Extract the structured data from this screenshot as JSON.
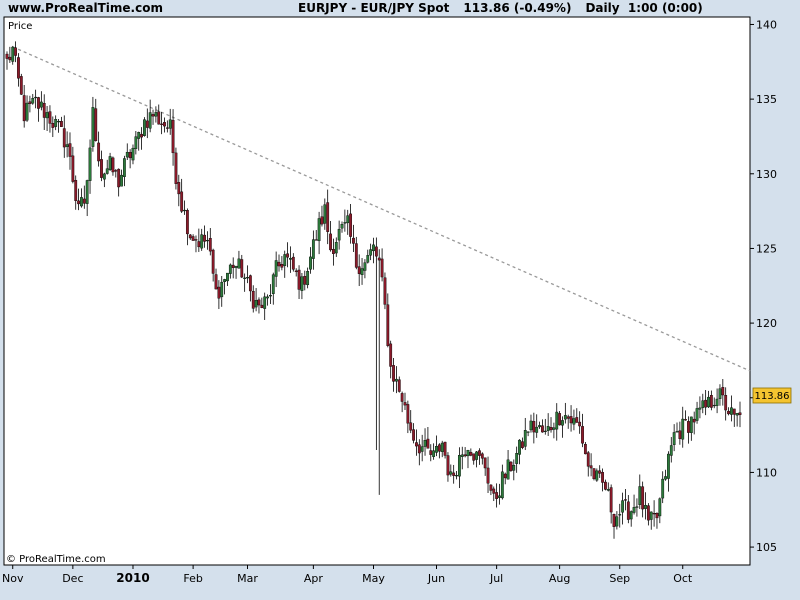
{
  "header": {
    "site": "www.ProRealTime.com",
    "symbol": "EURJPY - EUR/JPY Spot",
    "change": "113.86 (-0.49%)",
    "period": "Daily  1:00 (0:00)"
  },
  "panel_label": "Price",
  "copyright": "© ProRealTime.com",
  "last_price": "113.86",
  "colors": {
    "background": "#d4e0ec",
    "plot_bg": "#ffffff",
    "up_candle": "#2c7a3b",
    "down_candle": "#8b1a2a",
    "trendline": "#999999",
    "price_tag": "#f4c430"
  },
  "chart_data": {
    "type": "candlestick",
    "title": "EURJPY - EUR/JPY Spot",
    "y_ticks": [
      105,
      110,
      115,
      120,
      125,
      130,
      135,
      140
    ],
    "ylim": [
      103.8,
      140.5
    ],
    "x_labels": [
      {
        "text": "Nov",
        "idx": 2,
        "bold": false
      },
      {
        "text": "Dec",
        "idx": 23,
        "bold": false
      },
      {
        "text": "2010",
        "idx": 44,
        "bold": true
      },
      {
        "text": "Feb",
        "idx": 65,
        "bold": false
      },
      {
        "text": "Mar",
        "idx": 84,
        "bold": false
      },
      {
        "text": "Apr",
        "idx": 107,
        "bold": false
      },
      {
        "text": "May",
        "idx": 128,
        "bold": false
      },
      {
        "text": "Jun",
        "idx": 150,
        "bold": false
      },
      {
        "text": "Jul",
        "idx": 171,
        "bold": false
      },
      {
        "text": "Aug",
        "idx": 193,
        "bold": false
      },
      {
        "text": "Sep",
        "idx": 214,
        "bold": false
      },
      {
        "text": "Oct",
        "idx": 236,
        "bold": false
      }
    ],
    "anchors": [
      [
        0,
        137.5
      ],
      [
        2,
        138.3
      ],
      [
        6,
        134.0
      ],
      [
        10,
        134.8
      ],
      [
        14,
        134.0
      ],
      [
        18,
        133.0
      ],
      [
        21,
        132.0
      ],
      [
        24,
        128.5
      ],
      [
        27,
        127.5
      ],
      [
        30,
        134.0
      ],
      [
        33,
        130.0
      ],
      [
        36,
        130.5
      ],
      [
        39,
        129.5
      ],
      [
        42,
        131.0
      ],
      [
        45,
        132.0
      ],
      [
        48,
        133.5
      ],
      [
        51,
        134.0
      ],
      [
        54,
        133.5
      ],
      [
        57,
        133.0
      ],
      [
        59,
        130.0
      ],
      [
        61,
        128.0
      ],
      [
        64,
        126.0
      ],
      [
        67,
        125.5
      ],
      [
        70,
        125.5
      ],
      [
        73,
        122.0
      ],
      [
        76,
        123.0
      ],
      [
        79,
        124.0
      ],
      [
        82,
        123.5
      ],
      [
        85,
        122.0
      ],
      [
        88,
        121.0
      ],
      [
        91,
        121.5
      ],
      [
        94,
        123.5
      ],
      [
        97,
        124.5
      ],
      [
        100,
        123.5
      ],
      [
        103,
        122.5
      ],
      [
        106,
        124.5
      ],
      [
        109,
        126.5
      ],
      [
        111,
        127.5
      ],
      [
        113,
        125.0
      ],
      [
        116,
        126.0
      ],
      [
        119,
        126.5
      ],
      [
        122,
        124.0
      ],
      [
        125,
        124.0
      ],
      [
        128,
        125.0
      ],
      [
        130,
        124.0
      ],
      [
        132,
        121.0
      ],
      [
        134,
        117.0
      ],
      [
        136,
        116.0
      ],
      [
        138,
        115.0
      ],
      [
        140,
        113.5
      ],
      [
        143,
        112.0
      ],
      [
        146,
        111.5
      ],
      [
        149,
        111.0
      ],
      [
        152,
        112.0
      ],
      [
        155,
        109.5
      ],
      [
        158,
        111.0
      ],
      [
        161,
        112.0
      ],
      [
        164,
        111.0
      ],
      [
        167,
        110.5
      ],
      [
        170,
        108.0
      ],
      [
        173,
        109.5
      ],
      [
        176,
        110.5
      ],
      [
        179,
        111.5
      ],
      [
        182,
        113.0
      ],
      [
        185,
        113.0
      ],
      [
        188,
        112.5
      ],
      [
        191,
        113.5
      ],
      [
        194,
        114.0
      ],
      [
        197,
        113.5
      ],
      [
        200,
        113.0
      ],
      [
        203,
        110.5
      ],
      [
        206,
        109.5
      ],
      [
        209,
        109.0
      ],
      [
        212,
        107.0
      ],
      [
        215,
        107.5
      ],
      [
        218,
        107.5
      ],
      [
        221,
        108.5
      ],
      [
        224,
        106.5
      ],
      [
        227,
        107.0
      ],
      [
        230,
        110.0
      ],
      [
        233,
        112.5
      ],
      [
        236,
        113.0
      ],
      [
        239,
        113.5
      ],
      [
        242,
        114.0
      ],
      [
        245,
        114.5
      ],
      [
        248,
        115.3
      ],
      [
        251,
        114.5
      ],
      [
        254,
        113.5
      ],
      [
        256,
        113.86
      ]
    ],
    "trendline": [
      [
        2,
        138.5
      ],
      [
        256,
        116.8
      ]
    ],
    "last": 113.86,
    "grid": false
  }
}
